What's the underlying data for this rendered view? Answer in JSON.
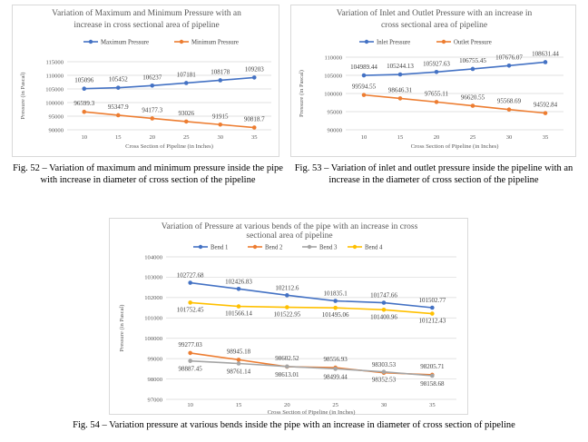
{
  "charts": [
    {
      "type": "line",
      "title_lines": [
        "Variation of Maximum and Minimum Pressure with an",
        "increase in cross sectional area of pipeline"
      ],
      "xlabel": "Cross Section of Pipeline (in Inches)",
      "ylabel": "Pressure (in Pascal)",
      "categories": [
        "10",
        "15",
        "20",
        "25",
        "30",
        "35"
      ],
      "ylim": [
        90000,
        115000
      ],
      "yticks": [
        90000,
        95000,
        100000,
        105000,
        110000,
        115000
      ],
      "ytick_labels": [
        "90000",
        "95000",
        "100000",
        "105000",
        "110000",
        "115000"
      ],
      "grid": true,
      "legend": "top",
      "series": [
        {
          "name": "Maximum Pressure",
          "color": "#4472C4",
          "values": [
            105096,
            105452,
            106237,
            107181,
            108178,
            109203
          ],
          "labels": [
            "105096",
            "105452",
            "106237",
            "107181",
            "108178",
            "109203"
          ]
        },
        {
          "name": "Minimum Pressure",
          "color": "#ED7D31",
          "values": [
            96599.3,
            95347.9,
            94177.3,
            93026,
            91915,
            90818.7
          ],
          "labels": [
            "96599.3",
            "95347.9",
            "94177.3",
            "93026",
            "91915",
            "90818.7"
          ]
        }
      ],
      "caption": "Fig. 52 – Variation of maximum and minimum pressure inside the pipe with increase in diameter of cross section of the pipeline"
    },
    {
      "type": "line",
      "title_lines": [
        "Variation of Inlet and Outlet Pressure with an increase in",
        "cross sectional area of pipeline"
      ],
      "xlabel": "Cross Section of Pipeline (in Inches)",
      "ylabel": "Pressure (in Pascal)",
      "categories": [
        "10",
        "15",
        "20",
        "25",
        "30",
        "35"
      ],
      "ylim": [
        90000,
        110000
      ],
      "yticks": [
        90000,
        95000,
        100000,
        105000,
        110000
      ],
      "ytick_labels": [
        "90000",
        "95000",
        "100000",
        "105000",
        "110000"
      ],
      "grid": true,
      "legend": "top",
      "series": [
        {
          "name": "Inlet Pressure",
          "color": "#4472C4",
          "values": [
            104989.44,
            105244.13,
            105927.63,
            106755.45,
            107676.07,
            108631.44
          ],
          "labels": [
            "104989.44",
            "105244.13",
            "105927.63",
            "106755.45",
            "107676.07",
            "108631.44"
          ]
        },
        {
          "name": "Outlet Pressure",
          "color": "#ED7D31",
          "values": [
            99594.55,
            98646.31,
            97655.11,
            96620.55,
            95568.69,
            94592.84
          ],
          "labels": [
            "99594.55",
            "98646.31",
            "97655.11",
            "96620.55",
            "95568.69",
            "94592.84"
          ]
        }
      ],
      "caption": "Fig. 53 – Variation of inlet and outlet pressure inside the pipeline with an increase in the diameter of cross section of the pipeline"
    },
    {
      "type": "line",
      "title_lines": [
        "Variation of Pressure at various bends of the pipe with an increase in cross",
        "sectional area of pipeline"
      ],
      "xlabel": "Cross Section of Pipeline (in Inches)",
      "ylabel": "Pressure (in Pascal)",
      "categories": [
        "10",
        "15",
        "20",
        "25",
        "30",
        "35"
      ],
      "ylim": [
        97000,
        104000
      ],
      "yticks": [
        97000,
        98000,
        99000,
        100000,
        101000,
        102000,
        103000,
        104000
      ],
      "ytick_labels": [
        "97000",
        "98000",
        "99000",
        "100000",
        "101000",
        "102000",
        "103000",
        "104000"
      ],
      "grid": true,
      "legend": "top",
      "series": [
        {
          "name": "Bend 1",
          "color": "#4472C4",
          "values": [
            102727.68,
            102426.83,
            102112.6,
            101835.1,
            101747.66,
            101502.77
          ],
          "labels": [
            "102727.68",
            "102426.83",
            "102112.6",
            "101835.1",
            "101747.66",
            "101502.77"
          ]
        },
        {
          "name": "Bend 2",
          "color": "#ED7D31",
          "values": [
            99277.03,
            98945.18,
            98602.52,
            98556.93,
            98303.53,
            98205.71
          ],
          "labels": [
            "99277.03",
            "98945.18",
            "98602.52",
            "98556.93",
            "98303.53",
            "98205.71"
          ]
        },
        {
          "name": "Bend 3",
          "color": "#A5A5A5",
          "values": [
            98887.45,
            98761.14,
            98613.01,
            98499.44,
            98352.53,
            98158.68
          ],
          "labels": [
            "98887.45",
            "98761.14",
            "98613.01",
            "98499.44",
            "98352.53",
            "98158.68"
          ]
        },
        {
          "name": "Bend 4",
          "color": "#FFC000",
          "values": [
            101752.45,
            101566.14,
            101522.95,
            101495.06,
            101400.96,
            101212.43
          ],
          "labels": [
            "101752.45",
            "101566.14",
            "101522.95",
            "101495.06",
            "101400.96",
            "101212.43"
          ]
        }
      ],
      "caption": "Fig. 54 – Variation pressure at various bends inside the pipe with an increase in diameter of cross section of pipeline"
    }
  ]
}
